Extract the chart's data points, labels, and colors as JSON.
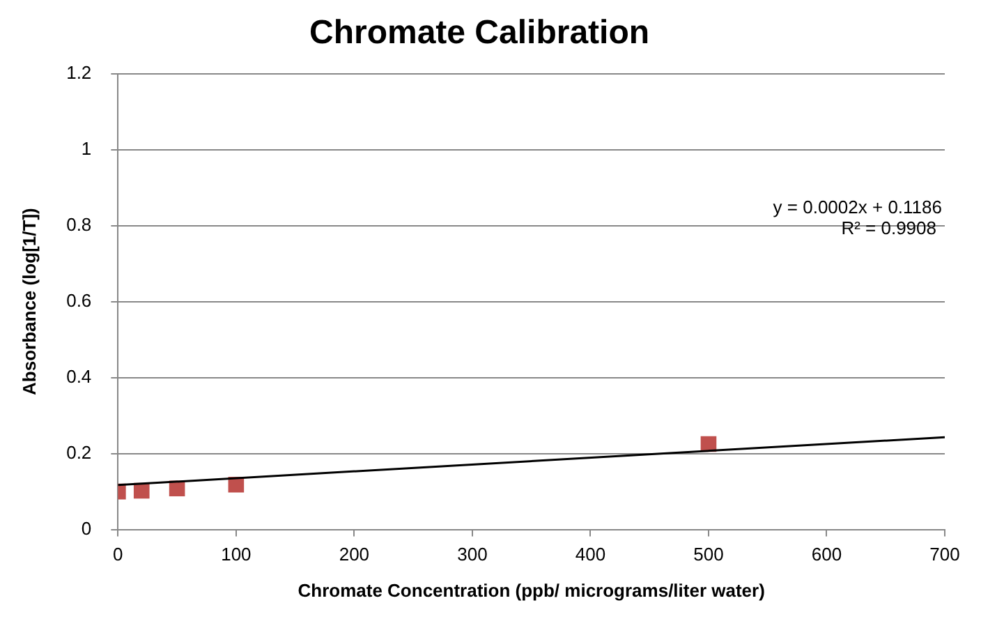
{
  "chart_data": {
    "type": "scatter",
    "title": "Chromate Calibration",
    "xlabel": "Chromate Concentration (ppb/ micrograms/liter water)",
    "ylabel": "Absorbance (log[1/T])",
    "series": [
      {
        "type": "scatter",
        "color": "#c0504d",
        "marker": "square",
        "x": [
          0,
          20,
          50,
          100,
          500
        ],
        "values": [
          0.1,
          0.102,
          0.108,
          0.118,
          0.225
        ]
      },
      {
        "type": "line",
        "color": "#000000",
        "marker": "none",
        "x": [
          0,
          700
        ],
        "values": [
          0.117,
          0.243
        ]
      }
    ],
    "annotations": [
      "y = 0.0002x + 0.1186",
      "R² = 0.9908"
    ],
    "xlim": [
      0,
      700
    ],
    "xticks": [
      0,
      100,
      200,
      300,
      400,
      500,
      600,
      700
    ],
    "ylim": [
      0,
      1.2
    ],
    "yticks": [
      0,
      0.2,
      0.4,
      0.6,
      0.8,
      1,
      1.2
    ],
    "grid": "y",
    "legend": false
  }
}
